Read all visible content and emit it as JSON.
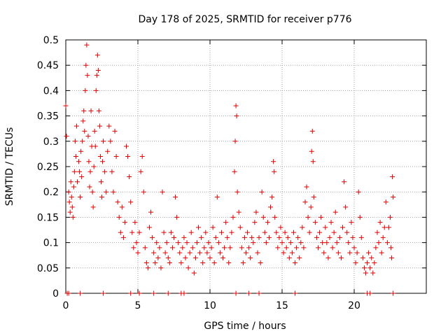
{
  "chart_data": {
    "type": "scatter",
    "title": "Day 178 of 2025, SRMTID for receiver p776",
    "xlabel": "GPS time / hours",
    "ylabel": "SRMTID / TECUs",
    "xlim": [
      0,
      25
    ],
    "ylim": [
      0,
      0.5
    ],
    "xticks": [
      0,
      5,
      10,
      15,
      20
    ],
    "xtick_labels": [
      "0",
      "5",
      "10",
      "15",
      "20"
    ],
    "yticks": [
      0,
      0.05,
      0.1,
      0.15,
      0.2,
      0.25,
      0.3,
      0.35,
      0.4,
      0.45,
      0.5
    ],
    "ytick_labels": [
      "0",
      "0.05",
      "0.1",
      "0.15",
      "0.2",
      "0.25",
      "0.3",
      "0.35",
      "0.4",
      "0.45",
      "0.5"
    ],
    "grid": true,
    "marker": "+",
    "color": "#e00000",
    "series": [
      {
        "name": "SRMTID",
        "points": [
          [
            0.0,
            0.37
          ],
          [
            0.05,
            0.31
          ],
          [
            0.2,
            0.2
          ],
          [
            0.25,
            0.18
          ],
          [
            0.3,
            0.16
          ],
          [
            0.35,
            0.22
          ],
          [
            0.4,
            0.19
          ],
          [
            0.45,
            0.17
          ],
          [
            0.5,
            0.15
          ],
          [
            0.55,
            0.21
          ],
          [
            0.6,
            0.24
          ],
          [
            0.65,
            0.3
          ],
          [
            0.7,
            0.27
          ],
          [
            0.75,
            0.33
          ],
          [
            0.8,
            0.22
          ],
          [
            0.9,
            0.26
          ],
          [
            0.95,
            0.24
          ],
          [
            1.0,
            0.19
          ],
          [
            1.05,
            0.28
          ],
          [
            1.1,
            0.23
          ],
          [
            1.15,
            0.3
          ],
          [
            1.2,
            0.34
          ],
          [
            1.25,
            0.36
          ],
          [
            1.3,
            0.32
          ],
          [
            1.35,
            0.4
          ],
          [
            1.4,
            0.45
          ],
          [
            1.45,
            0.49
          ],
          [
            1.5,
            0.43
          ],
          [
            1.55,
            0.31
          ],
          [
            1.6,
            0.26
          ],
          [
            1.65,
            0.21
          ],
          [
            1.7,
            0.24
          ],
          [
            1.75,
            0.36
          ],
          [
            1.8,
            0.29
          ],
          [
            1.85,
            0.2
          ],
          [
            1.9,
            0.17
          ],
          [
            1.95,
            0.25
          ],
          [
            2.0,
            0.32
          ],
          [
            2.05,
            0.29
          ],
          [
            2.1,
            0.4
          ],
          [
            2.15,
            0.43
          ],
          [
            2.2,
            0.47
          ],
          [
            2.25,
            0.44
          ],
          [
            2.3,
            0.36
          ],
          [
            2.35,
            0.33
          ],
          [
            2.4,
            0.27
          ],
          [
            2.45,
            0.22
          ],
          [
            2.5,
            0.19
          ],
          [
            2.55,
            0.26
          ],
          [
            2.6,
            0.3
          ],
          [
            2.7,
            0.24
          ],
          [
            2.8,
            0.2
          ],
          [
            2.9,
            0.28
          ],
          [
            3.0,
            0.33
          ],
          [
            3.1,
            0.3
          ],
          [
            3.2,
            0.24
          ],
          [
            3.3,
            0.2
          ],
          [
            3.4,
            0.32
          ],
          [
            3.5,
            0.27
          ],
          [
            3.6,
            0.18
          ],
          [
            3.7,
            0.15
          ],
          [
            3.8,
            0.12
          ],
          [
            3.9,
            0.17
          ],
          [
            4.0,
            0.11
          ],
          [
            4.1,
            0.14
          ],
          [
            4.2,
            0.29
          ],
          [
            4.3,
            0.27
          ],
          [
            4.4,
            0.23
          ],
          [
            4.5,
            0.18
          ],
          [
            4.6,
            0.12
          ],
          [
            4.7,
            0.09
          ],
          [
            4.8,
            0.14
          ],
          [
            4.9,
            0.1
          ],
          [
            5.0,
            0.08
          ],
          [
            5.1,
            0.12
          ],
          [
            5.2,
            0.24
          ],
          [
            5.3,
            0.27
          ],
          [
            5.4,
            0.2
          ],
          [
            5.5,
            0.09
          ],
          [
            5.6,
            0.06
          ],
          [
            5.7,
            0.05
          ],
          [
            5.8,
            0.13
          ],
          [
            5.9,
            0.16
          ],
          [
            6.0,
            0.11
          ],
          [
            6.1,
            0.08
          ],
          [
            6.2,
            0.06
          ],
          [
            6.3,
            0.1
          ],
          [
            6.4,
            0.07
          ],
          [
            6.5,
            0.09
          ],
          [
            6.6,
            0.05
          ],
          [
            6.7,
            0.2
          ],
          [
            6.8,
            0.12
          ],
          [
            6.9,
            0.08
          ],
          [
            7.0,
            0.1
          ],
          [
            7.1,
            0.07
          ],
          [
            7.2,
            0.06
          ],
          [
            7.3,
            0.12
          ],
          [
            7.4,
            0.09
          ],
          [
            7.5,
            0.11
          ],
          [
            7.6,
            0.19
          ],
          [
            7.7,
            0.15
          ],
          [
            7.8,
            0.1
          ],
          [
            7.9,
            0.08
          ],
          [
            8.0,
            0.06
          ],
          [
            8.1,
            0.09
          ],
          [
            8.2,
            0.11
          ],
          [
            8.3,
            0.07
          ],
          [
            8.4,
            0.1
          ],
          [
            8.5,
            0.05
          ],
          [
            8.6,
            0.08
          ],
          [
            8.7,
            0.12
          ],
          [
            8.8,
            0.09
          ],
          [
            8.9,
            0.04
          ],
          [
            9.0,
            0.07
          ],
          [
            9.1,
            0.1
          ],
          [
            9.2,
            0.13
          ],
          [
            9.3,
            0.08
          ],
          [
            9.4,
            0.11
          ],
          [
            9.5,
            0.06
          ],
          [
            9.6,
            0.09
          ],
          [
            9.7,
            0.12
          ],
          [
            9.8,
            0.08
          ],
          [
            9.9,
            0.1
          ],
          [
            10.0,
            0.07
          ],
          [
            10.1,
            0.09
          ],
          [
            10.2,
            0.13
          ],
          [
            10.3,
            0.06
          ],
          [
            10.4,
            0.11
          ],
          [
            10.5,
            0.19
          ],
          [
            10.6,
            0.1
          ],
          [
            10.7,
            0.08
          ],
          [
            10.8,
            0.12
          ],
          [
            10.9,
            0.07
          ],
          [
            11.0,
            0.09
          ],
          [
            11.1,
            0.14
          ],
          [
            11.2,
            0.11
          ],
          [
            11.3,
            0.06
          ],
          [
            11.4,
            0.09
          ],
          [
            11.5,
            0.12
          ],
          [
            11.6,
            0.15
          ],
          [
            11.7,
            0.24
          ],
          [
            11.75,
            0.3
          ],
          [
            11.8,
            0.37
          ],
          [
            11.85,
            0.35
          ],
          [
            11.9,
            0.2
          ],
          [
            12.0,
            0.16
          ],
          [
            12.1,
            0.13
          ],
          [
            12.2,
            0.09
          ],
          [
            12.3,
            0.06
          ],
          [
            12.4,
            0.11
          ],
          [
            12.5,
            0.08
          ],
          [
            12.6,
            0.12
          ],
          [
            12.7,
            0.09
          ],
          [
            12.8,
            0.07
          ],
          [
            12.9,
            0.11
          ],
          [
            13.0,
            0.1
          ],
          [
            13.1,
            0.14
          ],
          [
            13.2,
            0.16
          ],
          [
            13.3,
            0.08
          ],
          [
            13.4,
            0.11
          ],
          [
            13.5,
            0.06
          ],
          [
            13.6,
            0.2
          ],
          [
            13.7,
            0.15
          ],
          [
            13.8,
            0.12
          ],
          [
            13.9,
            0.1
          ],
          [
            14.0,
            0.14
          ],
          [
            14.1,
            0.11
          ],
          [
            14.2,
            0.17
          ],
          [
            14.3,
            0.19
          ],
          [
            14.4,
            0.26
          ],
          [
            14.45,
            0.24
          ],
          [
            14.5,
            0.15
          ],
          [
            14.6,
            0.12
          ],
          [
            14.7,
            0.09
          ],
          [
            14.8,
            0.11
          ],
          [
            14.9,
            0.13
          ],
          [
            15.0,
            0.1
          ],
          [
            15.1,
            0.08
          ],
          [
            15.2,
            0.12
          ],
          [
            15.3,
            0.09
          ],
          [
            15.4,
            0.11
          ],
          [
            15.5,
            0.07
          ],
          [
            15.6,
            0.1
          ],
          [
            15.7,
            0.08
          ],
          [
            15.8,
            0.12
          ],
          [
            15.9,
            0.06
          ],
          [
            16.0,
            0.09
          ],
          [
            16.1,
            0.11
          ],
          [
            16.2,
            0.07
          ],
          [
            16.3,
            0.1
          ],
          [
            16.4,
            0.13
          ],
          [
            16.5,
            0.09
          ],
          [
            16.6,
            0.18
          ],
          [
            16.7,
            0.21
          ],
          [
            16.8,
            0.15
          ],
          [
            16.9,
            0.12
          ],
          [
            17.0,
            0.17
          ],
          [
            17.05,
            0.28
          ],
          [
            17.1,
            0.32
          ],
          [
            17.15,
            0.26
          ],
          [
            17.2,
            0.19
          ],
          [
            17.3,
            0.14
          ],
          [
            17.4,
            0.11
          ],
          [
            17.5,
            0.09
          ],
          [
            17.6,
            0.12
          ],
          [
            17.7,
            0.15
          ],
          [
            17.8,
            0.1
          ],
          [
            17.9,
            0.08
          ],
          [
            18.0,
            0.13
          ],
          [
            18.1,
            0.1
          ],
          [
            18.2,
            0.07
          ],
          [
            18.3,
            0.11
          ],
          [
            18.4,
            0.14
          ],
          [
            18.5,
            0.09
          ],
          [
            18.6,
            0.12
          ],
          [
            18.7,
            0.16
          ],
          [
            18.8,
            0.1
          ],
          [
            18.9,
            0.08
          ],
          [
            19.0,
            0.11
          ],
          [
            19.1,
            0.07
          ],
          [
            19.2,
            0.13
          ],
          [
            19.3,
            0.22
          ],
          [
            19.4,
            0.17
          ],
          [
            19.5,
            0.12
          ],
          [
            19.6,
            0.1
          ],
          [
            19.7,
            0.08
          ],
          [
            19.8,
            0.14
          ],
          [
            19.9,
            0.11
          ],
          [
            20.0,
            0.09
          ],
          [
            20.1,
            0.06
          ],
          [
            20.2,
            0.08
          ],
          [
            20.3,
            0.2
          ],
          [
            20.4,
            0.15
          ],
          [
            20.5,
            0.11
          ],
          [
            20.6,
            0.07
          ],
          [
            20.7,
            0.05
          ],
          [
            20.8,
            0.04
          ],
          [
            20.9,
            0.06
          ],
          [
            21.0,
            0.08
          ],
          [
            21.1,
            0.05
          ],
          [
            21.2,
            0.07
          ],
          [
            21.3,
            0.04
          ],
          [
            21.4,
            0.06
          ],
          [
            21.5,
            0.09
          ],
          [
            21.6,
            0.12
          ],
          [
            21.7,
            0.1
          ],
          [
            21.8,
            0.14
          ],
          [
            21.9,
            0.08
          ],
          [
            22.0,
            0.11
          ],
          [
            22.1,
            0.13
          ],
          [
            22.2,
            0.18
          ],
          [
            22.3,
            0.1
          ],
          [
            22.4,
            0.13
          ],
          [
            22.5,
            0.15
          ],
          [
            22.55,
            0.09
          ],
          [
            22.6,
            0.07
          ],
          [
            22.65,
            0.23
          ],
          [
            22.7,
            0.19
          ],
          [
            0.1,
            0.0
          ],
          [
            0.2,
            0.0
          ],
          [
            1.0,
            0.0
          ],
          [
            2.6,
            0.0
          ],
          [
            4.5,
            0.0
          ],
          [
            5.1,
            0.0
          ],
          [
            6.1,
            0.0
          ],
          [
            7.1,
            0.0
          ],
          [
            8.0,
            0.0
          ],
          [
            8.2,
            0.0
          ],
          [
            11.8,
            0.0
          ],
          [
            12.7,
            0.0
          ],
          [
            13.4,
            0.0
          ],
          [
            15.9,
            0.0
          ],
          [
            20.9,
            0.0
          ],
          [
            21.1,
            0.0
          ],
          [
            22.7,
            0.0
          ]
        ]
      }
    ]
  }
}
